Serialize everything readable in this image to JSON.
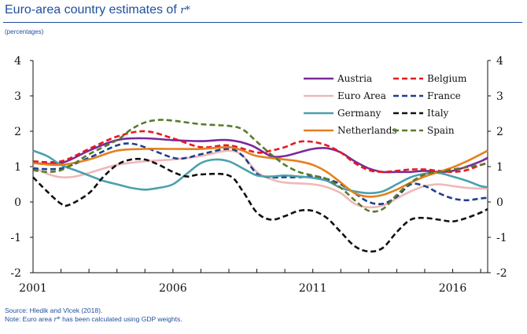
{
  "header": {
    "title": "Euro-area country estimates of",
    "title_symbol": "r*"
  },
  "subtitle": "(percentages)",
  "footer": {
    "source": "Source: Hledik and Vlcek (2018).",
    "note_prefix": "Note: Euro area",
    "note_symbol": "r*",
    "note_suffix": "has been calculated using GDP weights."
  },
  "chart_data": {
    "type": "line",
    "ylim": [
      -2,
      4
    ],
    "xlim": [
      2001,
      2017.25
    ],
    "y_ticks": [
      4,
      3,
      2,
      1,
      0,
      -1,
      -2
    ],
    "x_ticks": [
      2001,
      2006,
      2011,
      2016
    ],
    "grid": false,
    "legend_position": "top-right",
    "series": [
      {
        "name": "Austria",
        "color": "#7a2a9a",
        "dash": "solid",
        "points": [
          [
            2001,
            1.1
          ],
          [
            2002,
            1.1
          ],
          [
            2003,
            1.45
          ],
          [
            2004,
            1.75
          ],
          [
            2005,
            1.8
          ],
          [
            2006,
            1.75
          ],
          [
            2007,
            1.72
          ],
          [
            2008,
            1.75
          ],
          [
            2008.8,
            1.6
          ],
          [
            2009.5,
            1.3
          ],
          [
            2010,
            1.3
          ],
          [
            2010.5,
            1.4
          ],
          [
            2011,
            1.5
          ],
          [
            2011.5,
            1.52
          ],
          [
            2012,
            1.4
          ],
          [
            2012.5,
            1.15
          ],
          [
            2013,
            0.95
          ],
          [
            2013.5,
            0.85
          ],
          [
            2014,
            0.85
          ],
          [
            2014.5,
            0.85
          ],
          [
            2015,
            0.88
          ],
          [
            2015.5,
            0.85
          ],
          [
            2016,
            0.88
          ],
          [
            2016.5,
            1.0
          ],
          [
            2017,
            1.15
          ],
          [
            2017.25,
            1.25
          ]
        ]
      },
      {
        "name": "Belgium",
        "color": "#e8181e",
        "dash": "dashed",
        "points": [
          [
            2001,
            1.15
          ],
          [
            2002,
            1.15
          ],
          [
            2003,
            1.5
          ],
          [
            2004,
            1.85
          ],
          [
            2005,
            2.0
          ],
          [
            2006,
            1.8
          ],
          [
            2007,
            1.55
          ],
          [
            2008,
            1.6
          ],
          [
            2009,
            1.4
          ],
          [
            2009.5,
            1.45
          ],
          [
            2010,
            1.55
          ],
          [
            2010.5,
            1.7
          ],
          [
            2011,
            1.7
          ],
          [
            2011.5,
            1.6
          ],
          [
            2012,
            1.4
          ],
          [
            2012.5,
            1.1
          ],
          [
            2013,
            0.9
          ],
          [
            2013.5,
            0.85
          ],
          [
            2014,
            0.88
          ],
          [
            2014.5,
            0.92
          ],
          [
            2015,
            0.92
          ],
          [
            2015.5,
            0.88
          ],
          [
            2016,
            0.85
          ],
          [
            2016.5,
            0.9
          ],
          [
            2017,
            1.05
          ],
          [
            2017.25,
            1.1
          ]
        ]
      },
      {
        "name": "Euro Area",
        "color": "#f0b8b8",
        "dash": "solid",
        "points": [
          [
            2001,
            1.0
          ],
          [
            2001.5,
            0.8
          ],
          [
            2002,
            0.7
          ],
          [
            2002.5,
            0.72
          ],
          [
            2003,
            0.82
          ],
          [
            2004,
            1.05
          ],
          [
            2005,
            1.15
          ],
          [
            2006,
            1.2
          ],
          [
            2007,
            1.3
          ],
          [
            2008,
            1.45
          ],
          [
            2008.5,
            1.3
          ],
          [
            2009,
            0.85
          ],
          [
            2009.5,
            0.65
          ],
          [
            2010,
            0.55
          ],
          [
            2011,
            0.5
          ],
          [
            2011.5,
            0.42
          ],
          [
            2012,
            0.25
          ],
          [
            2012.5,
            -0.05
          ],
          [
            2013,
            -0.15
          ],
          [
            2013.5,
            -0.1
          ],
          [
            2014,
            0.1
          ],
          [
            2014.5,
            0.3
          ],
          [
            2015,
            0.45
          ],
          [
            2015.5,
            0.5
          ],
          [
            2016,
            0.45
          ],
          [
            2016.5,
            0.4
          ],
          [
            2017,
            0.38
          ],
          [
            2017.25,
            0.38
          ]
        ]
      },
      {
        "name": "France",
        "color": "#1f3f8f",
        "dash": "dashed",
        "points": [
          [
            2001,
            0.95
          ],
          [
            2002,
            0.95
          ],
          [
            2003,
            1.25
          ],
          [
            2004,
            1.6
          ],
          [
            2004.5,
            1.65
          ],
          [
            2005,
            1.55
          ],
          [
            2006,
            1.25
          ],
          [
            2006.5,
            1.25
          ],
          [
            2007,
            1.35
          ],
          [
            2008,
            1.5
          ],
          [
            2008.5,
            1.3
          ],
          [
            2009,
            0.8
          ],
          [
            2009.5,
            0.7
          ],
          [
            2010,
            0.7
          ],
          [
            2010.5,
            0.7
          ],
          [
            2011,
            0.72
          ],
          [
            2011.5,
            0.65
          ],
          [
            2012,
            0.5
          ],
          [
            2012.5,
            0.25
          ],
          [
            2013,
            0.0
          ],
          [
            2013.5,
            -0.05
          ],
          [
            2014,
            0.15
          ],
          [
            2014.5,
            0.5
          ],
          [
            2015,
            0.45
          ],
          [
            2015.5,
            0.25
          ],
          [
            2016,
            0.1
          ],
          [
            2016.5,
            0.05
          ],
          [
            2017,
            0.1
          ],
          [
            2017.25,
            0.12
          ]
        ]
      },
      {
        "name": "Germany",
        "color": "#4aa0ae",
        "dash": "solid",
        "points": [
          [
            2001,
            1.45
          ],
          [
            2001.5,
            1.3
          ],
          [
            2002,
            1.05
          ],
          [
            2002.5,
            0.9
          ],
          [
            2003,
            0.75
          ],
          [
            2003.5,
            0.6
          ],
          [
            2004,
            0.5
          ],
          [
            2004.5,
            0.4
          ],
          [
            2005,
            0.35
          ],
          [
            2005.5,
            0.4
          ],
          [
            2006,
            0.5
          ],
          [
            2006.5,
            0.8
          ],
          [
            2007,
            1.1
          ],
          [
            2007.5,
            1.2
          ],
          [
            2008,
            1.15
          ],
          [
            2008.5,
            0.95
          ],
          [
            2009,
            0.75
          ],
          [
            2009.5,
            0.72
          ],
          [
            2010,
            0.75
          ],
          [
            2010.5,
            0.72
          ],
          [
            2011,
            0.68
          ],
          [
            2011.5,
            0.6
          ],
          [
            2012,
            0.4
          ],
          [
            2012.5,
            0.3
          ],
          [
            2013,
            0.25
          ],
          [
            2013.5,
            0.3
          ],
          [
            2014,
            0.5
          ],
          [
            2014.5,
            0.7
          ],
          [
            2015,
            0.8
          ],
          [
            2015.5,
            0.82
          ],
          [
            2016,
            0.72
          ],
          [
            2016.5,
            0.6
          ],
          [
            2017,
            0.45
          ],
          [
            2017.25,
            0.42
          ]
        ]
      },
      {
        "name": "Italy",
        "color": "#111111",
        "dash": "dashed",
        "points": [
          [
            2001,
            0.7
          ],
          [
            2001.5,
            0.3
          ],
          [
            2002,
            -0.05
          ],
          [
            2002.3,
            -0.08
          ],
          [
            2003,
            0.25
          ],
          [
            2003.5,
            0.7
          ],
          [
            2004,
            1.05
          ],
          [
            2004.5,
            1.2
          ],
          [
            2005,
            1.2
          ],
          [
            2005.5,
            1.05
          ],
          [
            2006,
            0.85
          ],
          [
            2006.5,
            0.72
          ],
          [
            2007,
            0.78
          ],
          [
            2008,
            0.75
          ],
          [
            2008.5,
            0.3
          ],
          [
            2009,
            -0.3
          ],
          [
            2009.5,
            -0.5
          ],
          [
            2010,
            -0.4
          ],
          [
            2010.5,
            -0.25
          ],
          [
            2011,
            -0.25
          ],
          [
            2011.5,
            -0.45
          ],
          [
            2012,
            -0.85
          ],
          [
            2012.5,
            -1.25
          ],
          [
            2013,
            -1.4
          ],
          [
            2013.5,
            -1.3
          ],
          [
            2014,
            -0.85
          ],
          [
            2014.5,
            -0.5
          ],
          [
            2015,
            -0.45
          ],
          [
            2015.5,
            -0.5
          ],
          [
            2016,
            -0.55
          ],
          [
            2016.5,
            -0.45
          ],
          [
            2017,
            -0.3
          ],
          [
            2017.25,
            -0.2
          ]
        ]
      },
      {
        "name": "Netherlands",
        "color": "#e5801c",
        "dash": "solid",
        "points": [
          [
            2001,
            1.1
          ],
          [
            2002,
            1.05
          ],
          [
            2003,
            1.2
          ],
          [
            2004,
            1.45
          ],
          [
            2005,
            1.5
          ],
          [
            2006,
            1.5
          ],
          [
            2007,
            1.5
          ],
          [
            2008,
            1.55
          ],
          [
            2008.5,
            1.45
          ],
          [
            2009,
            1.3
          ],
          [
            2010,
            1.2
          ],
          [
            2010.5,
            1.15
          ],
          [
            2011,
            1.05
          ],
          [
            2011.5,
            0.85
          ],
          [
            2012,
            0.55
          ],
          [
            2012.5,
            0.25
          ],
          [
            2013,
            0.15
          ],
          [
            2013.5,
            0.2
          ],
          [
            2014,
            0.35
          ],
          [
            2014.5,
            0.55
          ],
          [
            2015,
            0.72
          ],
          [
            2015.5,
            0.85
          ],
          [
            2016,
            0.98
          ],
          [
            2016.5,
            1.15
          ],
          [
            2017,
            1.35
          ],
          [
            2017.25,
            1.45
          ]
        ]
      },
      {
        "name": "Spain",
        "color": "#5a7a2e",
        "dash": "dashed",
        "points": [
          [
            2001,
            0.9
          ],
          [
            2001.5,
            0.85
          ],
          [
            2002,
            0.9
          ],
          [
            2002.5,
            1.1
          ],
          [
            2003,
            1.35
          ],
          [
            2004,
            1.75
          ],
          [
            2004.5,
            2.05
          ],
          [
            2005,
            2.25
          ],
          [
            2005.5,
            2.32
          ],
          [
            2006,
            2.3
          ],
          [
            2007,
            2.2
          ],
          [
            2008,
            2.15
          ],
          [
            2008.5,
            2.05
          ],
          [
            2009,
            1.7
          ],
          [
            2009.5,
            1.35
          ],
          [
            2010,
            1.05
          ],
          [
            2010.5,
            0.85
          ],
          [
            2011,
            0.75
          ],
          [
            2011.5,
            0.65
          ],
          [
            2012,
            0.4
          ],
          [
            2012.5,
            0.05
          ],
          [
            2013,
            -0.25
          ],
          [
            2013.5,
            -0.2
          ],
          [
            2014,
            0.2
          ],
          [
            2014.5,
            0.55
          ],
          [
            2015,
            0.78
          ],
          [
            2015.5,
            0.85
          ],
          [
            2016,
            0.92
          ],
          [
            2016.5,
            0.98
          ],
          [
            2017,
            1.05
          ],
          [
            2017.25,
            1.1
          ]
        ]
      }
    ]
  }
}
